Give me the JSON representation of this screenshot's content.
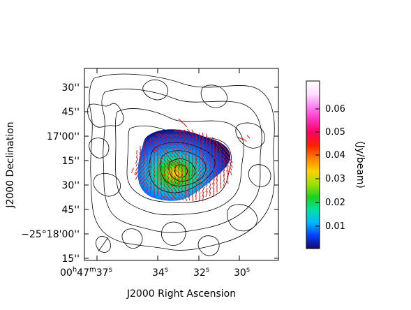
{
  "map": {
    "axes": {
      "x_label": "J2000 Right Ascension",
      "y_label": "J2000 Declination",
      "x_ticks": [
        {
          "h": "00",
          "m": "47",
          "s": "37"
        },
        {
          "s": "34"
        },
        {
          "s": "32"
        },
        {
          "s": "30"
        }
      ],
      "y_ticks": [
        {
          "label": "30''"
        },
        {
          "label": "45''"
        },
        {
          "label": "17'00''"
        },
        {
          "label": "15''"
        },
        {
          "label": "30''"
        },
        {
          "label": "45''"
        },
        {
          "label": "−25°18'00''"
        },
        {
          "label": "15''"
        }
      ]
    },
    "colorbar": {
      "label": "(Jy/beam)",
      "ticks": [
        "0.06",
        "0.05",
        "0.04",
        "0.03",
        "0.02",
        "0.01"
      ],
      "colors": [
        "#120a70",
        "#0040ff",
        "#00b8ff",
        "#00e0a0",
        "#20d020",
        "#a0e000",
        "#ffd000",
        "#ff8000",
        "#ff2000",
        "#ff0060",
        "#ff30c0",
        "#ff80f0",
        "#ffe0ff",
        "#ffffff"
      ]
    },
    "colors": {
      "contour": "#000000",
      "vectors": "#e01010"
    }
  }
}
